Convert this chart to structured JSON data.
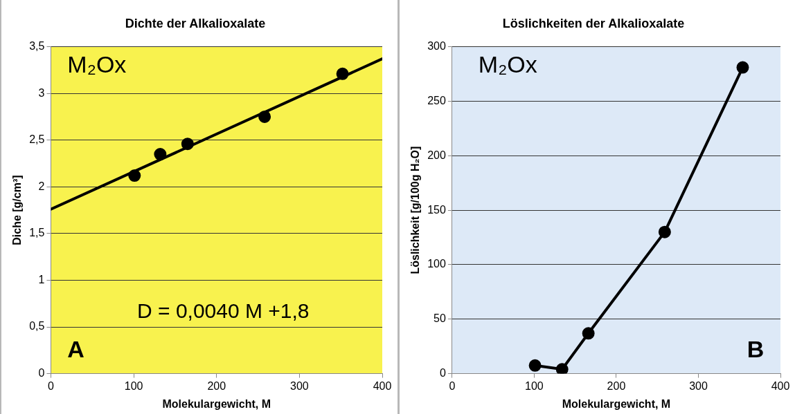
{
  "chart_data": [
    {
      "type": "scatter",
      "title": "Dichte der Alkalioxalate",
      "xlabel": "Molekulargewicht, M",
      "ylabel": "Diche [g/cm³]",
      "x": [
        101,
        132,
        165,
        258,
        352
      ],
      "xlim": [
        0,
        400
      ],
      "xticks": [
        0,
        100,
        200,
        300,
        400
      ],
      "ylim": [
        0,
        3.5
      ],
      "yticks": [
        0,
        {
          "value": 0.5,
          "label": "0,5"
        },
        1,
        {
          "value": 1.5,
          "label": "1,5"
        },
        2,
        {
          "value": 2.5,
          "label": "2,5"
        },
        3,
        {
          "value": 3.5,
          "label": "3,5"
        }
      ],
      "grid": "y",
      "marker": "circle",
      "series": [
        {
          "color": "#000000",
          "values": [
            2.12,
            2.35,
            2.46,
            2.75,
            3.21
          ]
        },
        {
          "type": "line",
          "color": "#000000",
          "x": [
            0,
            400
          ],
          "values": [
            1.76,
            3.37
          ],
          "marker": "none"
        }
      ],
      "annotations": [
        "M₂Ox",
        "D = 0,0040 M +1,8",
        "A"
      ]
    },
    {
      "type": "line",
      "title": "Löslichkeiten der Alkalioxalate",
      "xlabel": "Molekulargewicht, M",
      "ylabel": "Löslichkeit [g/100g H₂O]",
      "x": [
        101,
        134,
        166,
        259,
        354
      ],
      "xlim": [
        0,
        400
      ],
      "xticks": [
        0,
        100,
        200,
        300,
        400
      ],
      "ylim": [
        0,
        300
      ],
      "yticks": [
        0,
        50,
        100,
        150,
        200,
        250,
        300
      ],
      "grid": "y",
      "marker": "circle",
      "series": [
        {
          "color": "#000000",
          "values": [
            7.5,
            4,
            37,
            130,
            281
          ]
        }
      ],
      "annotations": [
        "M₂Ox",
        "B"
      ]
    }
  ]
}
